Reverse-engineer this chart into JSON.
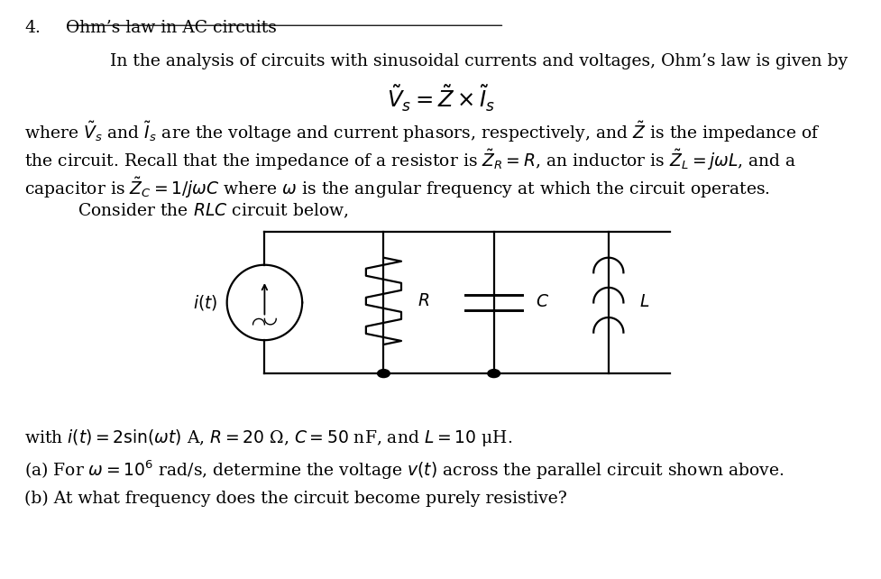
{
  "title_number": "4.",
  "title_text": "Ohm’s law in AC circuits",
  "bg_color": "#ffffff",
  "text_color": "#000000",
  "figsize": [
    9.78,
    6.42
  ],
  "dpi": 100,
  "para1": "In the analysis of circuits with sinusoidal currents and voltages, Ohm’s law is given by",
  "equation": "$\\tilde{V}_s = \\tilde{Z} \\times \\tilde{I}_s$",
  "para2_line1": "where $\\tilde{V}_s$ and $\\tilde{I}_s$ are the voltage and current phasors, respectively, and $\\tilde{Z}$ is the impedance of",
  "para2_line2": "the circuit. Recall that the impedance of a resistor is $\\tilde{Z}_R = R$, an inductor is $\\tilde{Z}_L = j\\omega L$, and a",
  "para2_line3": "capacitor is $\\tilde{Z}_C = 1/j\\omega C$ where $\\omega$ is the angular frequency at which the circuit operates.",
  "para3": "Consider the $RLC$ circuit below,",
  "label_it": "$i(t)$",
  "label_R": "$R$",
  "label_C": "$C$",
  "label_L": "$L$",
  "para4": "with $i(t) = 2\\sin(\\omega t)$ A, $R = 20$ Ω, $C = 50$ nF, and $L = 10$ μH.",
  "para5": "(a) For $\\omega = 10^6$ rad/s, determine the voltage $v(t)$ across the parallel circuit shown above.",
  "para6": "(b) At what frequency does the circuit become purely resistive?"
}
